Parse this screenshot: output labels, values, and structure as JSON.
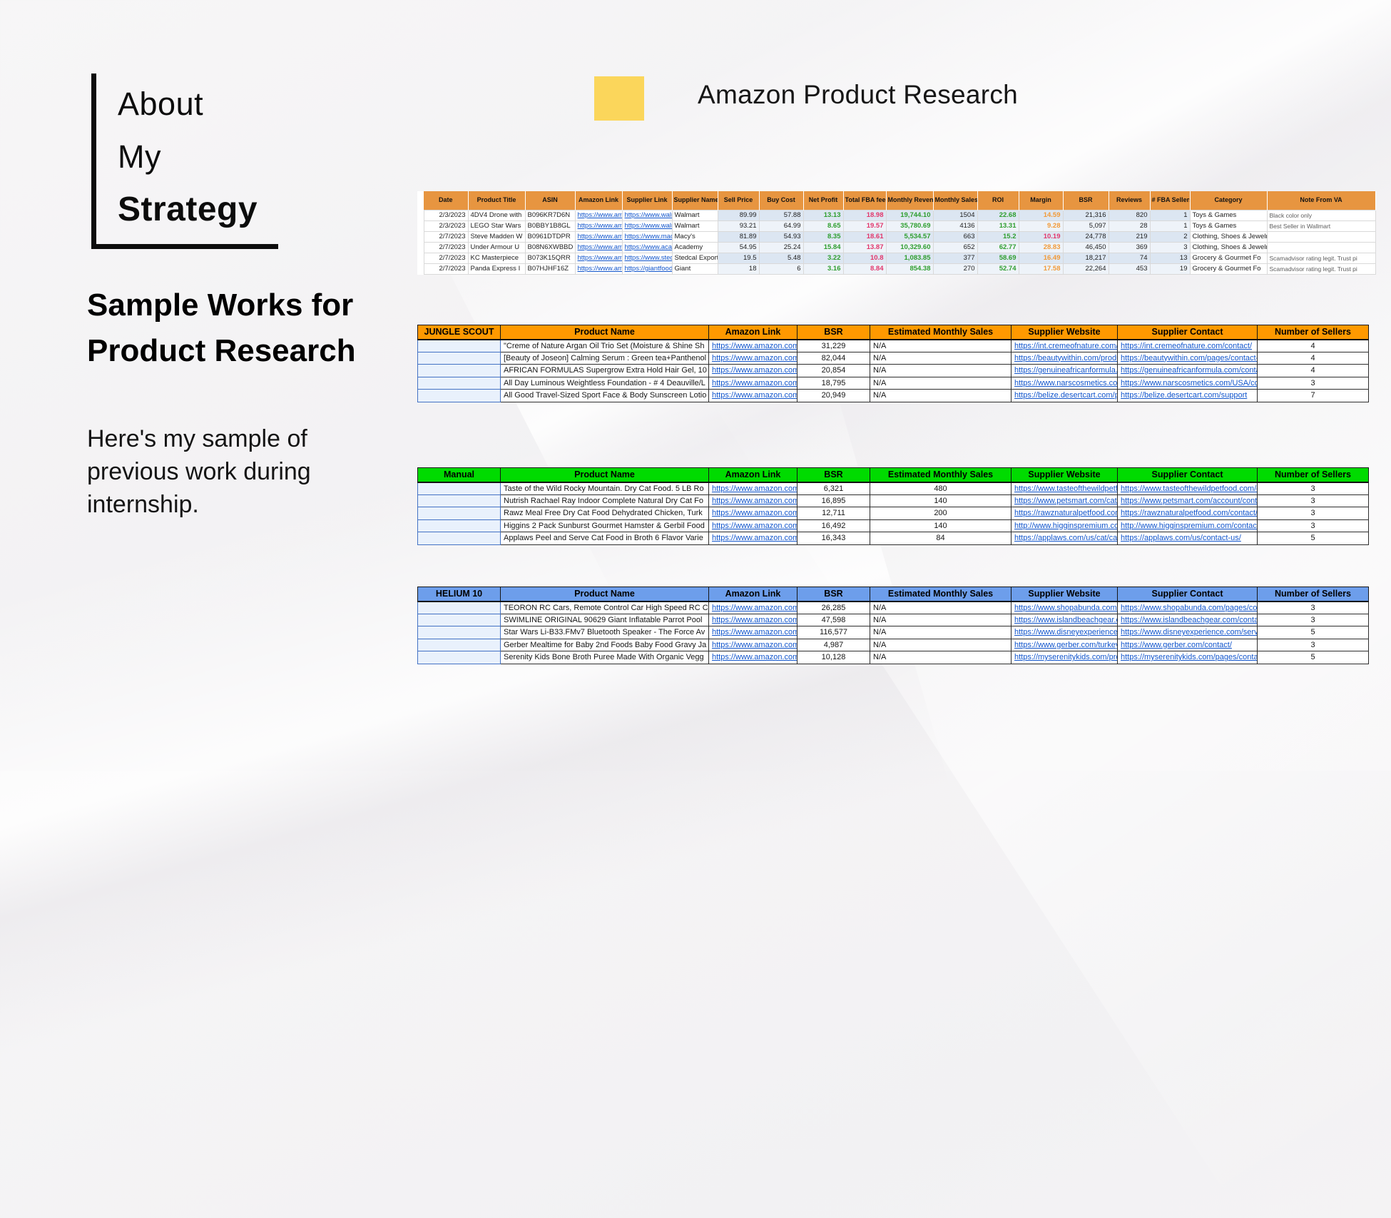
{
  "colors": {
    "accent_square": "#FBD65B",
    "research_header_bg": "#E79540",
    "jungle_header_bg": "#FF9900",
    "manual_header_bg": "#00DB00",
    "helium_header_bg": "#6D9EEB",
    "positive_value": "#2E9E2E",
    "negative_value": "#E2366B",
    "margin_warn_value": "#F29A38",
    "link_color": "#1155CC"
  },
  "left_panel": {
    "heading_line1": "About",
    "heading_line2": "My",
    "heading_line3": "Strategy",
    "subheading_line1": "Sample Works for",
    "subheading_line2": "Product Research",
    "description": "Here's my sample of previous work during internship."
  },
  "header": {
    "title": "Amazon Product Research"
  },
  "research_table": {
    "columns": [
      "Date",
      "Product Title",
      "ASIN",
      "Amazon Link",
      "Supplier Link",
      "Supplier Name",
      "Sell Price",
      "Buy Cost",
      "Net Profit",
      "Total FBA fees",
      "Monthly Revenue",
      "Monthly Sales",
      "ROI",
      "Margin",
      "BSR",
      "Reviews",
      "# FBA Sellers",
      "Category",
      "Note From VA"
    ],
    "rows": [
      {
        "date": "2/3/2023",
        "product_title": "4DV4 Drone with",
        "asin": "B096KR7D6N",
        "amazon_link": "https://www.ama",
        "supplier_link": "https://www.waln",
        "supplier_name": "Walmart",
        "sell_price": "89.99",
        "buy_cost": "57.88",
        "net_profit": "13.13",
        "total_fba_fees": "18.98",
        "monthly_revenue": "19,744.10",
        "monthly_sales": "1504",
        "roi": "22.68",
        "margin": "14.59",
        "margin_state": "warn",
        "bsr": "21,316",
        "reviews": "820",
        "fba_sellers": "1",
        "category": "Toys & Games",
        "note": "Black color only"
      },
      {
        "date": "2/3/2023",
        "product_title": "LEGO Star Wars",
        "asin": "B0BBY1B8GL",
        "amazon_link": "https://www.ama",
        "supplier_link": "https://www.waln",
        "supplier_name": "Walmart",
        "sell_price": "93.21",
        "buy_cost": "64.99",
        "net_profit": "8.65",
        "total_fba_fees": "19.57",
        "monthly_revenue": "35,780.69",
        "monthly_sales": "4136",
        "roi": "13.31",
        "margin": "9.28",
        "margin_state": "warn",
        "bsr": "5,097",
        "reviews": "28",
        "fba_sellers": "1",
        "category": "Toys & Games",
        "note": "Best Seller in Wallmart"
      },
      {
        "date": "2/7/2023",
        "product_title": "Steve Madden W",
        "asin": "B0961DTDPR",
        "amazon_link": "https://www.ama",
        "supplier_link": "https://www.mac",
        "supplier_name": "Macy's",
        "sell_price": "81.89",
        "buy_cost": "54.93",
        "net_profit": "8.35",
        "total_fba_fees": "18.61",
        "monthly_revenue": "5,534.57",
        "monthly_sales": "663",
        "roi": "15.2",
        "margin": "10.19",
        "margin_state": "bad",
        "bsr": "24,778",
        "reviews": "219",
        "fba_sellers": "2",
        "category": "Clothing, Shoes & Jewelry",
        "note": ""
      },
      {
        "date": "2/7/2023",
        "product_title": "Under Armour U",
        "asin": "B08N6XWBBD",
        "amazon_link": "https://www.ama",
        "supplier_link": "https://www.aca",
        "supplier_name": "Academy",
        "sell_price": "54.95",
        "buy_cost": "25.24",
        "net_profit": "15.84",
        "total_fba_fees": "13.87",
        "monthly_revenue": "10,329.60",
        "monthly_sales": "652",
        "roi": "62.77",
        "margin": "28.83",
        "margin_state": "warn",
        "bsr": "46,450",
        "reviews": "369",
        "fba_sellers": "3",
        "category": "Clothing, Shoes & Jewelry",
        "note": ""
      },
      {
        "date": "2/7/2023",
        "product_title": "KC Masterpiece",
        "asin": "B073K15QRR",
        "amazon_link": "https://www.ama",
        "supplier_link": "https://www.sted",
        "supplier_name": "Stedcal Exports",
        "sell_price": "19.5",
        "buy_cost": "5.48",
        "net_profit": "3.22",
        "total_fba_fees": "10.8",
        "monthly_revenue": "1,083.85",
        "monthly_sales": "377",
        "roi": "58.69",
        "margin": "16.49",
        "margin_state": "warn",
        "bsr": "18,217",
        "reviews": "74",
        "fba_sellers": "13",
        "category": "Grocery & Gourmet Fo",
        "note": "Scamadvisor rating legit. Trust pi"
      },
      {
        "date": "2/7/2023",
        "product_title": "Panda Express I",
        "asin": "B07HJHF16Z",
        "amazon_link": "https://www.ama",
        "supplier_link": "https://giantfood.",
        "supplier_name": "Giant",
        "sell_price": "18",
        "buy_cost": "6",
        "net_profit": "3.16",
        "total_fba_fees": "8.84",
        "monthly_revenue": "854.38",
        "monthly_sales": "270",
        "roi": "52.74",
        "margin": "17.58",
        "margin_state": "warn",
        "bsr": "22,264",
        "reviews": "453",
        "fba_sellers": "19",
        "category": "Grocery & Gourmet Fo",
        "note": "Scamadvisor rating legit. Trust pi"
      }
    ]
  },
  "tool_table_columns": [
    "Product Name",
    "Amazon Link",
    "BSR",
    "Estimated Monthly Sales",
    "Supplier Website",
    "Supplier Contact",
    "Number of Sellers"
  ],
  "tool_tables": [
    {
      "label": "JUNGLE SCOUT",
      "header_bg": "#FF9900",
      "rows": [
        {
          "product_name": "\"Creme of Nature Argan Oil Trio Set (Moisture & Shine Sh",
          "amazon_link": "https://www.amazon.com/d",
          "bsr": "31,229",
          "est_monthly_sales": "N/A",
          "supplier_website": "https://int.cremeofnature.com/",
          "supplier_contact": "https://int.cremeofnature.com/contact/",
          "number_of_sellers": "4"
        },
        {
          "product_name": "[Beauty of Joseon] Calming Serum : Green tea+Panthenol",
          "amazon_link": "https://www.amazon.com/d",
          "bsr": "82,044",
          "est_monthly_sales": "N/A",
          "supplier_website": "https://beautywithin.com/produc",
          "supplier_contact": "https://beautywithin.com/pages/contact-u",
          "number_of_sellers": "4"
        },
        {
          "product_name": "AFRICAN FORMULAS Supergrow Extra Hold Hair Gel, 10",
          "amazon_link": "https://www.amazon.com/d",
          "bsr": "20,854",
          "est_monthly_sales": "N/A",
          "supplier_website": "https://genuineafricanformula.c",
          "supplier_contact": "https://genuineafricanformula.com/contac",
          "number_of_sellers": "4"
        },
        {
          "product_name": "All Day Luminous Weightless Foundation - # 4 Deauville/L",
          "amazon_link": "https://www.amazon.com/d",
          "bsr": "18,795",
          "est_monthly_sales": "N/A",
          "supplier_website": "https://www.narscosmetics.com",
          "supplier_contact": "https://www.narscosmetics.com/USA/con",
          "number_of_sellers": "3"
        },
        {
          "product_name": "All Good Travel-Sized Sport Face & Body Sunscreen Lotio",
          "amazon_link": "https://www.amazon.com/d",
          "bsr": "20,949",
          "est_monthly_sales": "N/A",
          "supplier_website": "https://belize.desertcart.com/pr",
          "supplier_contact": "https://belize.desertcart.com/support",
          "number_of_sellers": "7"
        }
      ]
    },
    {
      "label": "Manual",
      "header_bg": "#00DB00",
      "rows": [
        {
          "product_name": "Taste of the Wild Rocky Mountain. Dry Cat Food. 5 LB Ro",
          "amazon_link": "https://www.amazon.com/M",
          "bsr": "6,321",
          "est_monthly_sales": "480",
          "supplier_website": "https://www.tasteofthewildpetfo",
          "supplier_contact": "https://www.tasteofthewildpetfood.com/co",
          "number_of_sellers": "3"
        },
        {
          "product_name": "Nutrish Rachael Ray Indoor Complete Natural Dry Cat Fo",
          "amazon_link": "https://www.amazon.com/N",
          "bsr": "16,895",
          "est_monthly_sales": "140",
          "supplier_website": "https://www.petsmart.com/cat/f",
          "supplier_contact": "https://www.petsmart.com/account/contac",
          "number_of_sellers": "3"
        },
        {
          "product_name": "Rawz Meal Free Dry Cat Food Dehydrated Chicken, Turk",
          "amazon_link": "https://www.amazon.com/F",
          "bsr": "12,711",
          "est_monthly_sales": "200",
          "supplier_website": "https://rawznaturalpetfood.com",
          "supplier_contact": "https://rawznaturalpetfood.com/contact/",
          "number_of_sellers": "3"
        },
        {
          "product_name": "Higgins 2 Pack Sunburst Gourmet Hamster & Gerbil Food",
          "amazon_link": "https://www.amazon.com/H",
          "bsr": "16,492",
          "est_monthly_sales": "140",
          "supplier_website": "http://www.higginspremium.con",
          "supplier_contact": "http://www.higginspremium.com/contact-f",
          "number_of_sellers": "3"
        },
        {
          "product_name": "Applaws Peel and Serve Cat Food in Broth 6 Flavor Varie",
          "amazon_link": "https://www.amazon.com/A",
          "bsr": "16,343",
          "est_monthly_sales": "84",
          "supplier_website": "https://applaws.com/us/cat/cat-",
          "supplier_contact": "https://applaws.com/us/contact-us/",
          "number_of_sellers": "5"
        }
      ]
    },
    {
      "label": "HELIUM 10",
      "header_bg": "#6D9EEB",
      "rows": [
        {
          "product_name": "TEORON RC Cars, Remote Control Car High Speed RC C",
          "amazon_link": "https://www.amazon.com/d",
          "bsr": "26,285",
          "est_monthly_sales": "N/A",
          "supplier_website": "https://www.shopabunda.com/p",
          "supplier_contact": "https://www.shopabunda.com/pages/cont",
          "number_of_sellers": "3"
        },
        {
          "product_name": "SWIMLINE ORIGINAL 90629 Giant Inflatable Parrot Pool",
          "amazon_link": "https://www.amazon.com/d",
          "bsr": "47,598",
          "est_monthly_sales": "N/A",
          "supplier_website": "https://www.islandbeachgear.co",
          "supplier_contact": "https://www.islandbeachgear.com/contact",
          "number_of_sellers": "3"
        },
        {
          "product_name": "Star Wars Li-B33.FMv7 Bluetooth Speaker - The Force Av",
          "amazon_link": "https://www.amazon.com/d",
          "bsr": "116,577",
          "est_monthly_sales": "N/A",
          "supplier_website": "https://www.disneyexperience.c",
          "supplier_contact": "https://www.disneyexperience.com/servic",
          "number_of_sellers": "5"
        },
        {
          "product_name": "Gerber Mealtime for Baby 2nd Foods Baby Food Gravy Ja",
          "amazon_link": "https://www.amazon.com/d",
          "bsr": "4,987",
          "est_monthly_sales": "N/A",
          "supplier_website": "https://www.gerber.com/turkey-",
          "supplier_contact": "https://www.gerber.com/contact/",
          "number_of_sellers": "3"
        },
        {
          "product_name": "Serenity Kids Bone Broth Puree Made With Organic Vegg",
          "amazon_link": "https://www.amazon.com/d",
          "bsr": "10,128",
          "est_monthly_sales": "N/A",
          "supplier_website": "https://myserenitykids.com/prod",
          "supplier_contact": "https://myserenitykids.com/pages/contact",
          "number_of_sellers": "5"
        }
      ]
    }
  ]
}
